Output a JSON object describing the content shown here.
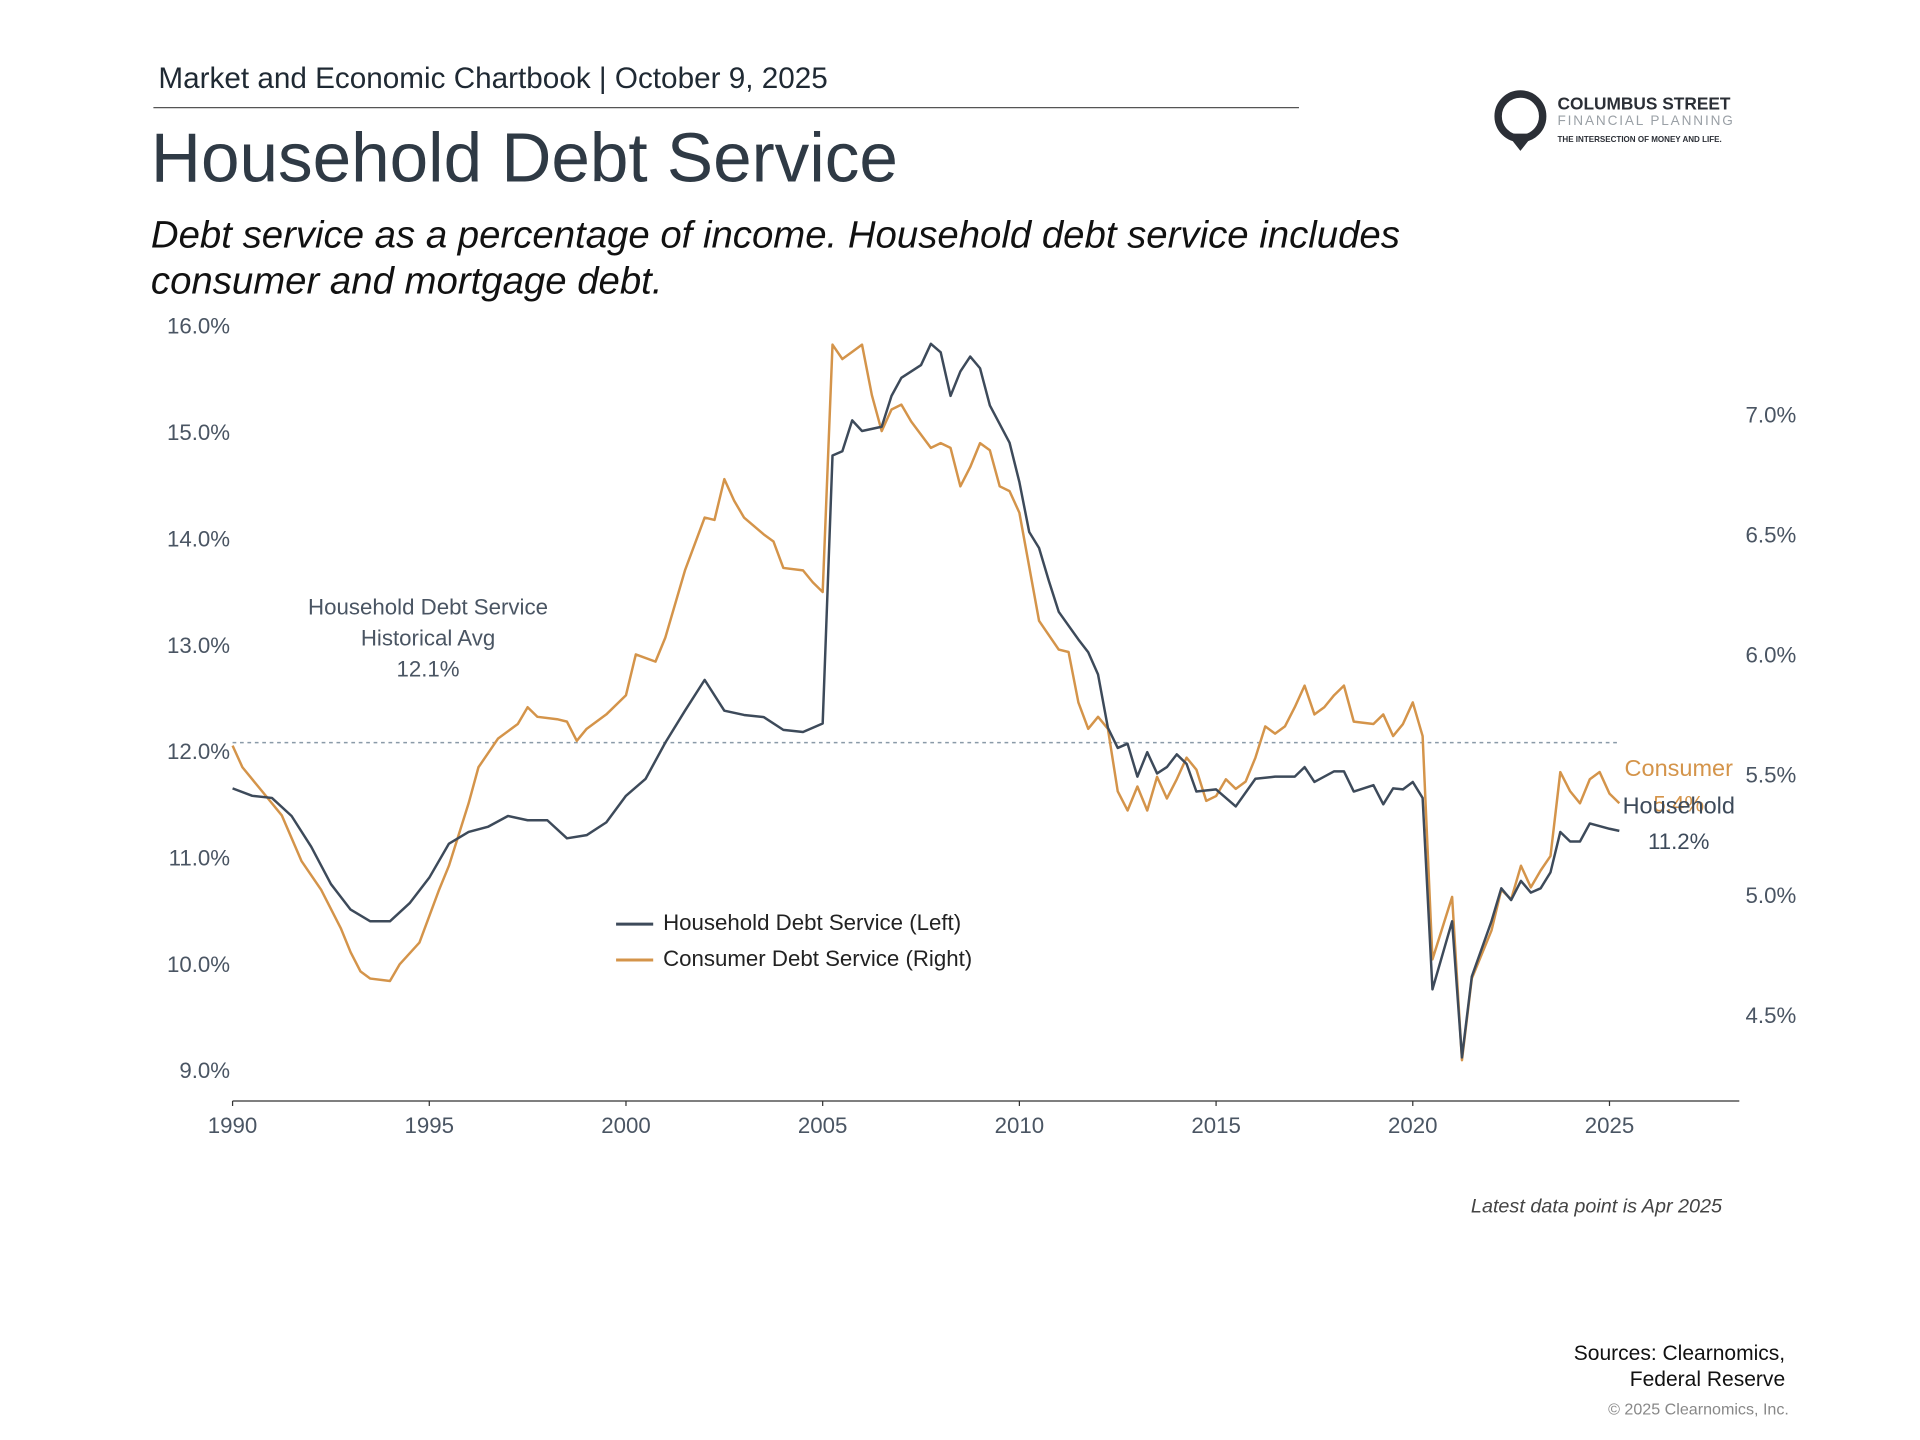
{
  "header": {
    "chartbook": "Market and Economic Chartbook | October 9, 2025"
  },
  "logo": {
    "name": "COLUMBUS STREET",
    "sub": "FINANCIAL PLANNING",
    "tagline": "THE INTERSECTION OF MONEY AND LIFE."
  },
  "chart_data": {
    "type": "line",
    "title": "Household Debt Service",
    "subtitle": [
      "Debt service as a percentage of income. Household debt service includes",
      "consumer and mortgage debt."
    ],
    "xlim": [
      1990,
      2028.3
    ],
    "xticks": [
      1990,
      1995,
      2000,
      2005,
      2010,
      2015,
      2020,
      2025
    ],
    "ylim": [
      8.73,
      16.0
    ],
    "yticks": [
      {
        "value": 9,
        "label": "9.0%"
      },
      {
        "value": 10,
        "label": "10.0%"
      },
      {
        "value": 11,
        "label": "11.0%"
      },
      {
        "value": 12,
        "label": "12.0%"
      },
      {
        "value": 13,
        "label": "13.0%"
      },
      {
        "value": 14,
        "label": "14.0%"
      },
      {
        "value": 15,
        "label": "15.0%"
      },
      {
        "value": 16,
        "label": "16.0%"
      }
    ],
    "y2lim": [
      4.15,
      7.37
    ],
    "y2ticks": [
      {
        "value": 4.5,
        "label": "4.5%"
      },
      {
        "value": 5.0,
        "label": "5.0%"
      },
      {
        "value": 5.5,
        "label": "5.5%"
      },
      {
        "value": 6.0,
        "label": "6.0%"
      },
      {
        "value": 6.5,
        "label": "6.5%"
      },
      {
        "value": 7.0,
        "label": "7.0%"
      }
    ],
    "reference_line": {
      "value": 12.1,
      "label": "12.1%",
      "annotation": [
        "Household Debt Service",
        "Historical Avg"
      ],
      "color": "#8a9aa8"
    },
    "series": [
      {
        "name": "Household Debt Service (Left)",
        "color": "#3d4a5a",
        "end_label": {
          "name": "Household",
          "value": 11.2,
          "label": "11.2%"
        },
        "x": [
          1990.0,
          1990.5,
          1991.0,
          1991.5,
          1992.0,
          1992.5,
          1993.0,
          1993.5,
          1994.0,
          1994.5,
          1995.0,
          1995.5,
          1996.0,
          1996.5,
          1997.0,
          1997.5,
          1998.0,
          1998.5,
          1999.0,
          1999.5,
          2000.0,
          2000.5,
          2001.0,
          2001.5,
          2002.0,
          2002.5,
          2003.0,
          2003.5,
          2004.0,
          2004.5,
          2005.0,
          2005.25,
          2005.5,
          2005.75,
          2006.0,
          2006.5,
          2006.75,
          2007.0,
          2007.5,
          2007.75,
          2008.0,
          2008.25,
          2008.5,
          2008.75,
          2009.0,
          2009.25,
          2009.75,
          2010.0,
          2010.25,
          2010.5,
          2010.75,
          2011.0,
          2011.5,
          2011.75,
          2012.0,
          2012.25,
          2012.5,
          2012.75,
          2013.0,
          2013.25,
          2013.5,
          2013.75,
          2014.0,
          2014.25,
          2014.5,
          2015.0,
          2015.5,
          2016.0,
          2016.5,
          2017.0,
          2017.25,
          2017.5,
          2018.0,
          2018.25,
          2018.5,
          2019.0,
          2019.25,
          2019.5,
          2019.75,
          2020.0,
          2020.25,
          2020.5,
          2021.0,
          2021.25,
          2021.5,
          2022.0,
          2022.25,
          2022.5,
          2022.75,
          2023.0,
          2023.25,
          2023.5,
          2023.75,
          2024.0,
          2024.25,
          2024.5,
          2025.0,
          2025.25
        ],
        "values": [
          11.67,
          11.6,
          11.58,
          11.41,
          11.12,
          10.77,
          10.53,
          10.42,
          10.42,
          10.59,
          10.83,
          11.15,
          11.26,
          11.31,
          11.41,
          11.37,
          11.37,
          11.2,
          11.23,
          11.35,
          11.6,
          11.76,
          12.1,
          12.4,
          12.69,
          12.4,
          12.36,
          12.34,
          12.22,
          12.2,
          12.28,
          14.8,
          14.84,
          15.13,
          15.03,
          15.07,
          15.36,
          15.53,
          15.65,
          15.85,
          15.77,
          15.36,
          15.59,
          15.73,
          15.62,
          15.27,
          14.92,
          14.55,
          14.08,
          13.93,
          13.62,
          13.33,
          13.07,
          12.95,
          12.74,
          12.24,
          12.05,
          12.09,
          11.78,
          12.01,
          11.81,
          11.87,
          11.99,
          11.9,
          11.64,
          11.66,
          11.5,
          11.76,
          11.78,
          11.78,
          11.87,
          11.73,
          11.83,
          11.83,
          11.64,
          11.7,
          11.52,
          11.67,
          11.66,
          11.73,
          11.58,
          9.78,
          10.42,
          9.14,
          9.9,
          10.42,
          10.73,
          10.62,
          10.8,
          10.69,
          10.73,
          10.88,
          11.26,
          11.17,
          11.17,
          11.34,
          11.29,
          11.27
        ]
      },
      {
        "name": "Consumer Debt Service (Right)",
        "color": "#d4944a",
        "axis": "y2",
        "end_label": {
          "name": "Consumer",
          "value": 5.4,
          "label": "5.4%"
        },
        "x": [
          1990.0,
          1990.25,
          1990.75,
          1991.25,
          1991.75,
          1992.25,
          1992.75,
          1993.0,
          1993.25,
          1993.5,
          1994.0,
          1994.25,
          1994.75,
          1995.25,
          1995.5,
          1996.0,
          1996.25,
          1996.75,
          1997.25,
          1997.5,
          1997.75,
          1998.25,
          1998.5,
          1998.75,
          1999.0,
          1999.5,
          2000.0,
          2000.25,
          2000.75,
          2001.0,
          2001.5,
          2002.0,
          2002.25,
          2002.5,
          2002.75,
          2003.0,
          2003.5,
          2003.75,
          2004.0,
          2004.5,
          2004.75,
          2005.0,
          2005.25,
          2005.5,
          2005.75,
          2006.0,
          2006.25,
          2006.5,
          2006.75,
          2007.0,
          2007.25,
          2007.75,
          2008.0,
          2008.25,
          2008.5,
          2008.75,
          2009.0,
          2009.25,
          2009.5,
          2009.75,
          2010.0,
          2010.5,
          2011.0,
          2011.25,
          2011.5,
          2011.75,
          2012.0,
          2012.25,
          2012.5,
          2012.75,
          2013.0,
          2013.25,
          2013.5,
          2013.75,
          2014.0,
          2014.25,
          2014.5,
          2014.75,
          2015.0,
          2015.25,
          2015.5,
          2015.75,
          2016.0,
          2016.25,
          2016.5,
          2016.75,
          2017.0,
          2017.25,
          2017.5,
          2017.75,
          2018.0,
          2018.25,
          2018.5,
          2019.0,
          2019.25,
          2019.5,
          2019.75,
          2020.0,
          2020.25,
          2020.5,
          2021.0,
          2021.25,
          2021.5,
          2022.0,
          2022.25,
          2022.5,
          2022.75,
          2023.0,
          2023.25,
          2023.5,
          2023.75,
          2024.0,
          2024.25,
          2024.5,
          2024.75,
          2025.0,
          2025.25
        ],
        "values": [
          5.63,
          5.54,
          5.44,
          5.34,
          5.15,
          5.03,
          4.87,
          4.77,
          4.69,
          4.66,
          4.65,
          4.72,
          4.81,
          5.03,
          5.13,
          5.39,
          5.54,
          5.66,
          5.72,
          5.79,
          5.75,
          5.74,
          5.73,
          5.65,
          5.7,
          5.76,
          5.84,
          6.01,
          5.98,
          6.08,
          6.36,
          6.58,
          6.57,
          6.74,
          6.65,
          6.58,
          6.51,
          6.48,
          6.37,
          6.36,
          6.31,
          6.27,
          7.3,
          7.24,
          7.27,
          7.3,
          7.09,
          6.94,
          7.03,
          7.05,
          6.98,
          6.87,
          6.89,
          6.87,
          6.71,
          6.79,
          6.89,
          6.86,
          6.71,
          6.69,
          6.6,
          6.15,
          6.03,
          6.02,
          5.81,
          5.7,
          5.75,
          5.7,
          5.44,
          5.36,
          5.46,
          5.36,
          5.5,
          5.41,
          5.49,
          5.58,
          5.53,
          5.4,
          5.42,
          5.49,
          5.45,
          5.48,
          5.58,
          5.71,
          5.68,
          5.71,
          5.79,
          5.88,
          5.76,
          5.79,
          5.84,
          5.88,
          5.73,
          5.72,
          5.76,
          5.67,
          5.72,
          5.81,
          5.67,
          4.74,
          5.0,
          4.32,
          4.66,
          4.86,
          5.03,
          4.99,
          5.13,
          5.04,
          5.11,
          5.17,
          5.52,
          5.44,
          5.39,
          5.49,
          5.52,
          5.43,
          5.39
        ]
      }
    ],
    "legend": "center",
    "note": "Latest data point is Apr 2025"
  },
  "footer": {
    "sources": [
      "Sources: Clearnomics,",
      "Federal Reserve"
    ],
    "copyright": "© 2025 Clearnomics, Inc."
  }
}
